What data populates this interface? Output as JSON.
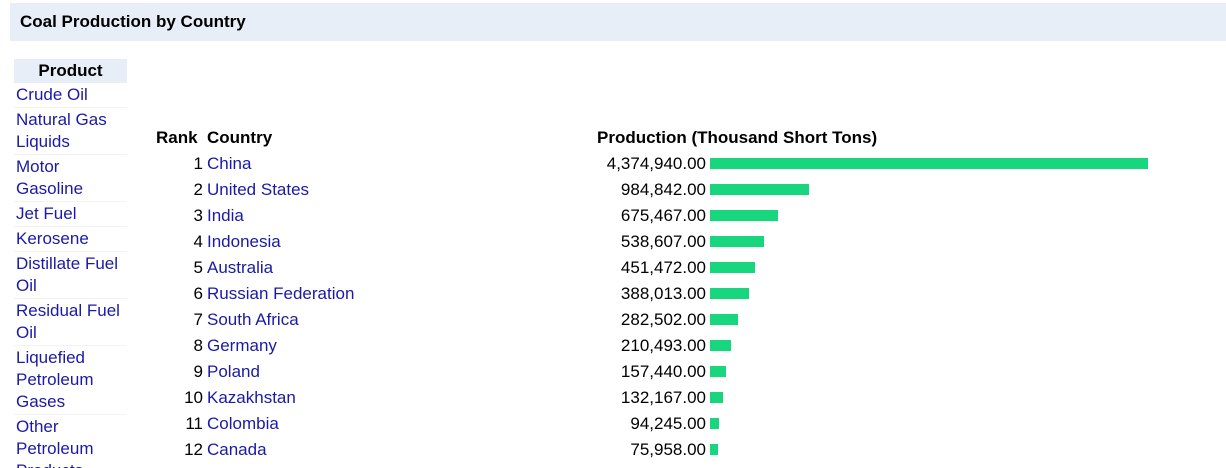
{
  "header": {
    "title": "Coal Production by Country"
  },
  "sidebar": {
    "heading": "Product",
    "items": [
      {
        "label": "Crude Oil"
      },
      {
        "label": "Natural Gas Liquids"
      },
      {
        "label": "Motor Gasoline"
      },
      {
        "label": "Jet Fuel"
      },
      {
        "label": "Kerosene"
      },
      {
        "label": "Distillate Fuel Oil"
      },
      {
        "label": "Residual Fuel Oil"
      },
      {
        "label": "Liquefied Petroleum Gases"
      },
      {
        "label": "Other Petroleum Products"
      }
    ]
  },
  "table": {
    "rank_header": "Rank",
    "country_header": "Country",
    "production_header": "Production (Thousand Short Tons)",
    "bar_color": "#17d67e",
    "bar_max_value": 4374940
  },
  "chart_data": {
    "type": "bar",
    "title": "Coal Production by Country",
    "ylabel": "Production (Thousand Short Tons)",
    "categories": [
      "China",
      "United States",
      "India",
      "Indonesia",
      "Australia",
      "Russian Federation",
      "South Africa",
      "Germany",
      "Poland",
      "Kazakhstan",
      "Colombia",
      "Canada"
    ],
    "rows": [
      {
        "rank": "1",
        "country": "China",
        "value": 4374940.0,
        "value_text": "4,374,940.00"
      },
      {
        "rank": "2",
        "country": "United States",
        "value": 984842.0,
        "value_text": "984,842.00"
      },
      {
        "rank": "3",
        "country": "India",
        "value": 675467.0,
        "value_text": "675,467.00"
      },
      {
        "rank": "4",
        "country": "Indonesia",
        "value": 538607.0,
        "value_text": "538,607.00"
      },
      {
        "rank": "5",
        "country": "Australia",
        "value": 451472.0,
        "value_text": "451,472.00"
      },
      {
        "rank": "6",
        "country": "Russian Federation",
        "value": 388013.0,
        "value_text": "388,013.00"
      },
      {
        "rank": "7",
        "country": "South Africa",
        "value": 282502.0,
        "value_text": "282,502.00"
      },
      {
        "rank": "8",
        "country": "Germany",
        "value": 210493.0,
        "value_text": "210,493.00"
      },
      {
        "rank": "9",
        "country": "Poland",
        "value": 157440.0,
        "value_text": "157,440.00"
      },
      {
        "rank": "10",
        "country": "Kazakhstan",
        "value": 132167.0,
        "value_text": "132,167.00"
      },
      {
        "rank": "11",
        "country": "Colombia",
        "value": 94245.0,
        "value_text": "94,245.00"
      },
      {
        "rank": "12",
        "country": "Canada",
        "value": 75958.0,
        "value_text": "75,958.00"
      }
    ]
  }
}
